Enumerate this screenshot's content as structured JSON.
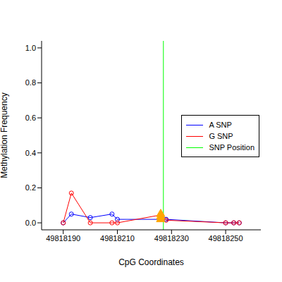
{
  "chart_data": {
    "type": "line",
    "x_label": "CpG Coordinates",
    "y_label": "Methylation Frequency",
    "xlim": [
      49818182,
      49818263
    ],
    "xticks": [
      49818190,
      49818210,
      49818230,
      49818250
    ],
    "ylim": [
      -0.04,
      1.04
    ],
    "yticks": [
      {
        "value": 0,
        "label": "0.0"
      },
      0.2,
      0.4,
      0.6,
      0.8,
      {
        "value": 1,
        "label": "1.0"
      }
    ],
    "legend": "right",
    "series": [
      {
        "name": "A SNP",
        "type": "line",
        "marker": "circle",
        "color": "#0000ff",
        "x": [
          49818190,
          49818193,
          49818200,
          49818208,
          49818210,
          49818226,
          49818228,
          49818250,
          49818253,
          49818255
        ],
        "values": [
          0,
          0.05,
          0.03,
          0.05,
          0.02,
          0.02,
          0.02,
          0,
          0,
          0
        ]
      },
      {
        "name": "G SNP",
        "type": "line",
        "marker": "circle",
        "color": "#ff0000",
        "x": [
          49818190,
          49818193,
          49818200,
          49818208,
          49818210,
          49818226,
          49818228,
          49818250,
          49818253,
          49818255
        ],
        "values": [
          0,
          0.17,
          0,
          0,
          0,
          0.045,
          0.015,
          0,
          0,
          0
        ]
      },
      {
        "type": "scatter",
        "marker": "triangle",
        "color": "#ffa500",
        "x": [
          49818226,
          49818226,
          49818226
        ],
        "values": [
          0.05,
          0.035,
          0.02
        ]
      }
    ],
    "reference_line": {
      "x": 49818227,
      "label": "SNP Position",
      "color": "#00ff00"
    }
  }
}
